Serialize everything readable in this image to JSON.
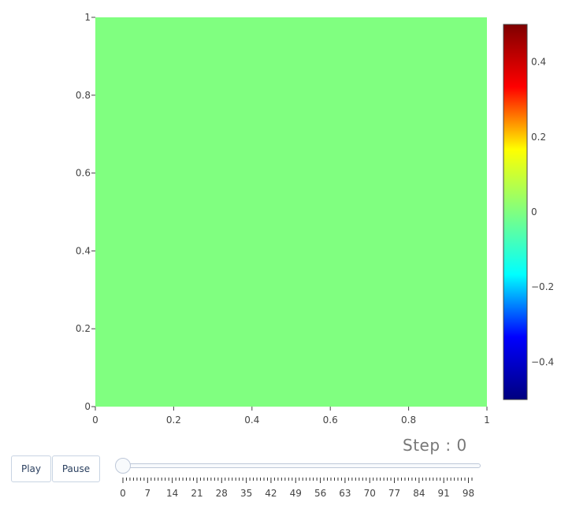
{
  "chart_data": {
    "type": "heatmap",
    "title": "",
    "xlabel": "",
    "ylabel": "",
    "xlim": [
      0,
      1
    ],
    "ylim": [
      0,
      1
    ],
    "x_ticks": [
      "0",
      "0.2",
      "0.4",
      "0.6",
      "0.8",
      "1"
    ],
    "y_ticks": [
      "0",
      "0.2",
      "0.4",
      "0.6",
      "0.8",
      "1"
    ],
    "z_uniform_value": 0,
    "fill_color": "#80ff80",
    "grid": false,
    "colorbar": {
      "colorscale": "Jet",
      "range": [
        -0.5,
        0.5
      ],
      "ticks": [
        0.4,
        0.2,
        0,
        -0.2,
        -0.4
      ],
      "tick_labels": [
        "0.4",
        "0.2",
        "0",
        "−0.2",
        "−0.4"
      ],
      "colors": [
        "#00007f",
        "#0000ff",
        "#00ffff",
        "#80ff80",
        "#ffff00",
        "#ff0000",
        "#7f0000"
      ]
    }
  },
  "animation": {
    "step_label": "Step : 0",
    "current_step": 0,
    "min_step": 0,
    "max_step": 99,
    "slider_tick_labels": [
      "0",
      "7",
      "14",
      "21",
      "28",
      "35",
      "42",
      "49",
      "56",
      "63",
      "70",
      "77",
      "84",
      "91",
      "98"
    ]
  },
  "controls": {
    "play_label": "Play",
    "pause_label": "Pause"
  }
}
